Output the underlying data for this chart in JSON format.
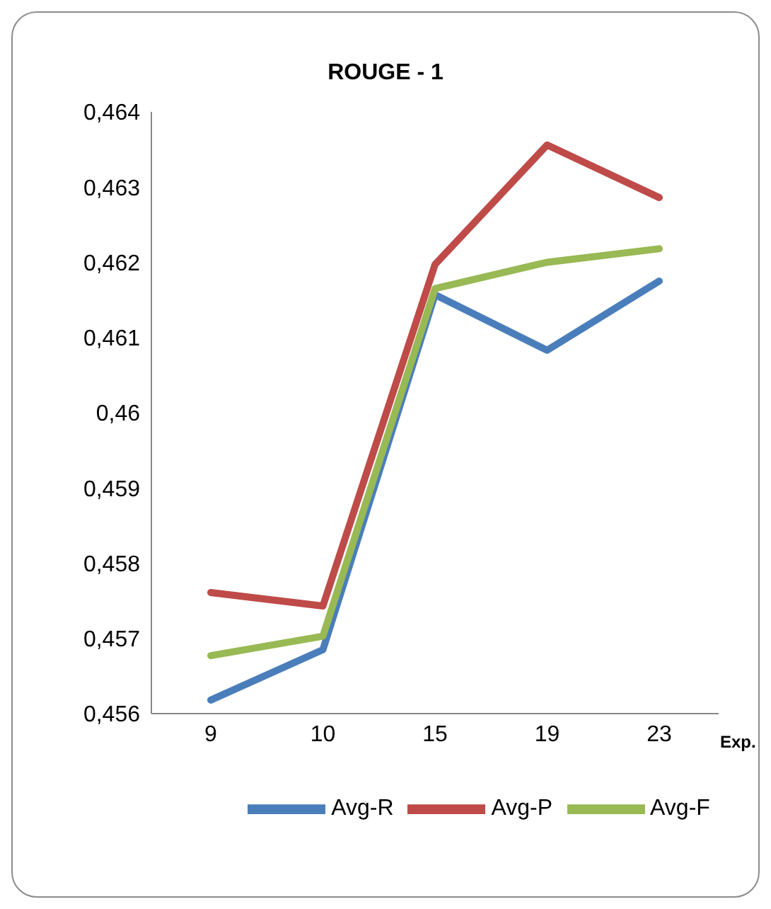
{
  "chart_data": {
    "type": "line",
    "title": "ROUGE - 1",
    "xlabel": "Exp.",
    "categories": [
      "9",
      "10",
      "15",
      "19",
      "23"
    ],
    "series": [
      {
        "name": "Avg-R",
        "color": "#4a7ebb",
        "values": [
          0.45618,
          0.45685,
          0.46157,
          0.46083,
          0.46175
        ]
      },
      {
        "name": "Avg-P",
        "color": "#be4b48",
        "values": [
          0.45761,
          0.45743,
          0.46197,
          0.46356,
          0.46286
        ]
      },
      {
        "name": "Avg-F",
        "color": "#98b954",
        "values": [
          0.45677,
          0.45703,
          0.46165,
          0.462,
          0.46218
        ]
      }
    ],
    "ylim": [
      0.456,
      0.464
    ],
    "yticks": [
      {
        "value": 0.456,
        "label": "0,456"
      },
      {
        "value": 0.457,
        "label": "0,457"
      },
      {
        "value": 0.458,
        "label": "0,458"
      },
      {
        "value": 0.459,
        "label": "0,459"
      },
      {
        "value": 0.46,
        "label": "0,46"
      },
      {
        "value": 0.461,
        "label": "0,461"
      },
      {
        "value": 0.462,
        "label": "0,462"
      },
      {
        "value": 0.463,
        "label": "0,463"
      },
      {
        "value": 0.464,
        "label": "0,464"
      }
    ],
    "grid": false,
    "legend": "bottom",
    "marker": "none",
    "line_style": "solid"
  }
}
